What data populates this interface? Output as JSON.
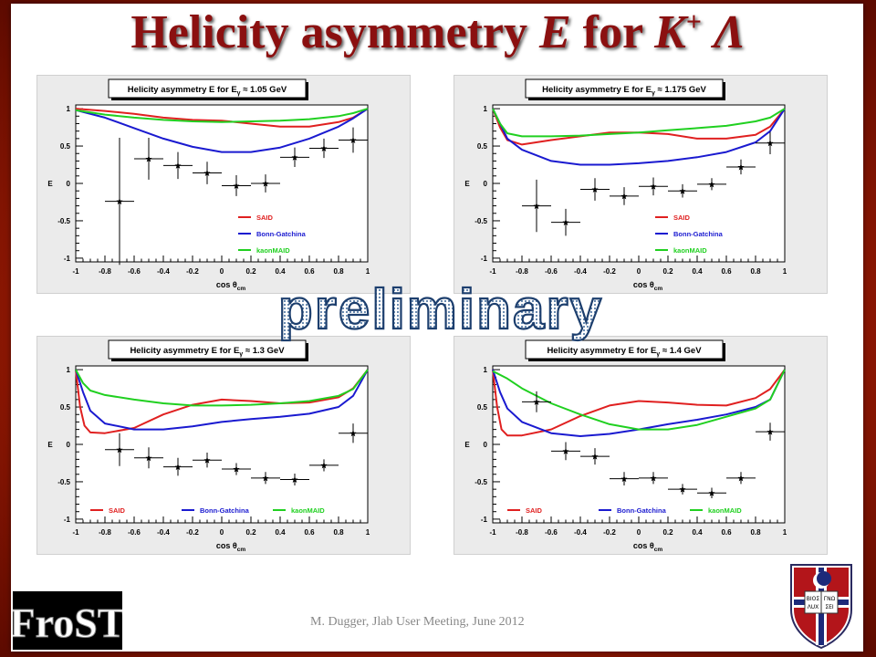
{
  "slide": {
    "title_main": "Helicity asymmetry ",
    "title_var": "E",
    "title_for": " for ",
    "title_K": "K",
    "title_sup": "+",
    "title_lambda": " Λ",
    "watermark": "preliminary",
    "footer": "M. Dugger, Jlab User Meeting, June 2012",
    "logo_text": "FroST",
    "shield_text": [
      "ΒΙΟΣ",
      "ΓΝΩ",
      "ΛUX",
      "ΣΕΙ"
    ]
  },
  "colors": {
    "SAID": "#e02020",
    "Bonn-Gatchina": "#1a1ad0",
    "kaonMAID": "#20d020",
    "title": "#8b1010"
  },
  "chart_data": [
    {
      "type": "line",
      "title_prefix": "Helicity asymmetry E  for E",
      "title_sub": "γ",
      "title_suffix": " ≈ 1.05 GeV",
      "xlabel": "cos θ",
      "xlabel_sub": "cm",
      "ylabel": "E",
      "xlim": [
        -1,
        1
      ],
      "ylim": [
        -1.05,
        1.05
      ],
      "xticks": [
        "-1",
        "-0.8",
        "-0.6",
        "-0.4",
        "-0.2",
        "0",
        "0.2",
        "0.4",
        "0.6",
        "0.8",
        "1"
      ],
      "yticks": [
        "-1",
        "-0.5",
        "0",
        "0.5",
        "1"
      ],
      "legend_position": "bottom-right-vertical",
      "series": [
        {
          "name": "SAID",
          "x": [
            -1,
            -0.8,
            -0.6,
            -0.4,
            -0.2,
            0,
            0.2,
            0.4,
            0.6,
            0.8,
            0.9,
            1
          ],
          "y": [
            1,
            0.97,
            0.93,
            0.88,
            0.85,
            0.84,
            0.8,
            0.76,
            0.76,
            0.82,
            0.88,
            1
          ]
        },
        {
          "name": "Bonn-Gatchina",
          "x": [
            -1,
            -0.8,
            -0.6,
            -0.4,
            -0.2,
            0,
            0.2,
            0.4,
            0.6,
            0.8,
            0.9,
            1
          ],
          "y": [
            0.98,
            0.88,
            0.74,
            0.6,
            0.49,
            0.42,
            0.42,
            0.48,
            0.6,
            0.76,
            0.87,
            1
          ]
        },
        {
          "name": "kaonMAID",
          "x": [
            -1,
            -0.8,
            -0.6,
            -0.4,
            -0.2,
            0,
            0.2,
            0.4,
            0.6,
            0.8,
            0.9,
            1
          ],
          "y": [
            0.98,
            0.92,
            0.88,
            0.85,
            0.83,
            0.82,
            0.83,
            0.84,
            0.86,
            0.9,
            0.94,
            1
          ]
        }
      ],
      "points": {
        "x": [
          -0.7,
          -0.5,
          -0.3,
          -0.1,
          0.1,
          0.3,
          0.5,
          0.7,
          0.9
        ],
        "y": [
          -0.24,
          0.33,
          0.24,
          0.14,
          -0.03,
          0.0,
          0.35,
          0.47,
          0.58
        ],
        "err": [
          0.85,
          0.28,
          0.18,
          0.15,
          0.14,
          0.12,
          0.13,
          0.13,
          0.17
        ]
      }
    },
    {
      "type": "line",
      "title_prefix": "Helicity asymmetry E  for E",
      "title_sub": "γ",
      "title_suffix": " ≈ 1.175 GeV",
      "xlabel": "cos θ",
      "xlabel_sub": "cm",
      "ylabel": "E",
      "xlim": [
        -1,
        1
      ],
      "ylim": [
        -1.05,
        1.05
      ],
      "xticks": [
        "-1",
        "-0.8",
        "-0.6",
        "-0.4",
        "-0.2",
        "0",
        "0.2",
        "0.4",
        "0.6",
        "0.8",
        "1"
      ],
      "yticks": [
        "-1",
        "-0.5",
        "0",
        "0.5",
        "1"
      ],
      "legend_position": "bottom-right-vertical",
      "series": [
        {
          "name": "SAID",
          "x": [
            -1,
            -0.95,
            -0.9,
            -0.8,
            -0.6,
            -0.4,
            -0.2,
            0,
            0.2,
            0.4,
            0.6,
            0.8,
            0.9,
            1
          ],
          "y": [
            1,
            0.75,
            0.58,
            0.52,
            0.58,
            0.63,
            0.68,
            0.68,
            0.66,
            0.6,
            0.6,
            0.65,
            0.76,
            1
          ]
        },
        {
          "name": "Bonn-Gatchina",
          "x": [
            -1,
            -0.95,
            -0.9,
            -0.8,
            -0.6,
            -0.4,
            -0.2,
            0,
            0.2,
            0.4,
            0.6,
            0.8,
            0.9,
            1
          ],
          "y": [
            1,
            0.8,
            0.6,
            0.45,
            0.3,
            0.25,
            0.25,
            0.27,
            0.3,
            0.35,
            0.42,
            0.55,
            0.7,
            1
          ]
        },
        {
          "name": "kaonMAID",
          "x": [
            -1,
            -0.95,
            -0.9,
            -0.8,
            -0.6,
            -0.4,
            -0.2,
            0,
            0.2,
            0.4,
            0.6,
            0.8,
            0.9,
            1
          ],
          "y": [
            1,
            0.8,
            0.67,
            0.63,
            0.63,
            0.64,
            0.66,
            0.68,
            0.71,
            0.74,
            0.77,
            0.83,
            0.88,
            1
          ]
        }
      ],
      "points": {
        "x": [
          -0.7,
          -0.5,
          -0.3,
          -0.1,
          0.1,
          0.3,
          0.5,
          0.7,
          0.9
        ],
        "y": [
          -0.3,
          -0.52,
          -0.08,
          -0.17,
          -0.04,
          -0.1,
          -0.01,
          0.22,
          0.54
        ],
        "err": [
          0.35,
          0.18,
          0.15,
          0.12,
          0.12,
          0.09,
          0.08,
          0.1,
          0.15
        ]
      }
    },
    {
      "type": "line",
      "title_prefix": "Helicity asymmetry E  for E",
      "title_sub": "γ",
      "title_suffix": " ≈ 1.3 GeV",
      "xlabel": "cos θ",
      "xlabel_sub": "cm",
      "ylabel": "E",
      "xlim": [
        -1,
        1
      ],
      "ylim": [
        -1.05,
        1.05
      ],
      "xticks": [
        "-1",
        "-0.8",
        "-0.6",
        "-0.4",
        "-0.2",
        "0",
        "0.2",
        "0.4",
        "0.6",
        "0.8",
        "1"
      ],
      "yticks": [
        "-1",
        "-0.5",
        "0",
        "0.5",
        "1"
      ],
      "legend_position": "bottom-horizontal",
      "series": [
        {
          "name": "SAID",
          "x": [
            -1,
            -0.97,
            -0.94,
            -0.9,
            -0.8,
            -0.6,
            -0.4,
            -0.2,
            0,
            0.2,
            0.4,
            0.6,
            0.8,
            0.9,
            1
          ],
          "y": [
            1,
            0.5,
            0.25,
            0.16,
            0.15,
            0.22,
            0.4,
            0.53,
            0.6,
            0.58,
            0.55,
            0.56,
            0.63,
            0.75,
            1
          ]
        },
        {
          "name": "Bonn-Gatchina",
          "x": [
            -1,
            -0.95,
            -0.9,
            -0.8,
            -0.6,
            -0.4,
            -0.2,
            0,
            0.2,
            0.4,
            0.6,
            0.8,
            0.9,
            1
          ],
          "y": [
            1,
            0.7,
            0.45,
            0.28,
            0.2,
            0.2,
            0.24,
            0.3,
            0.34,
            0.37,
            0.41,
            0.5,
            0.65,
            1
          ]
        },
        {
          "name": "kaonMAID",
          "x": [
            -1,
            -0.95,
            -0.9,
            -0.8,
            -0.6,
            -0.4,
            -0.2,
            0,
            0.2,
            0.4,
            0.6,
            0.8,
            0.9,
            1
          ],
          "y": [
            1,
            0.82,
            0.72,
            0.66,
            0.6,
            0.55,
            0.52,
            0.52,
            0.53,
            0.55,
            0.58,
            0.65,
            0.74,
            1
          ]
        }
      ],
      "points": {
        "x": [
          -0.7,
          -0.5,
          -0.3,
          -0.1,
          0.1,
          0.3,
          0.5,
          0.7,
          0.9
        ],
        "y": [
          -0.07,
          -0.18,
          -0.3,
          -0.21,
          -0.33,
          -0.45,
          -0.47,
          -0.28,
          0.15
        ],
        "err": [
          0.22,
          0.14,
          0.12,
          0.1,
          0.08,
          0.08,
          0.08,
          0.08,
          0.13
        ]
      }
    },
    {
      "type": "line",
      "title_prefix": "Helicity asymmetry E  for E",
      "title_sub": "γ",
      "title_suffix": " ≈ 1.4 GeV",
      "xlabel": "cos θ",
      "xlabel_sub": "cm",
      "ylabel": "E",
      "xlim": [
        -1,
        1
      ],
      "ylim": [
        -1.05,
        1.05
      ],
      "xticks": [
        "-1",
        "-0.8",
        "-0.6",
        "-0.4",
        "-0.2",
        "0",
        "0.2",
        "0.4",
        "0.6",
        "0.8",
        "1"
      ],
      "yticks": [
        "-1",
        "-0.5",
        "0",
        "0.5",
        "1"
      ],
      "legend_position": "bottom-horizontal",
      "series": [
        {
          "name": "SAID",
          "x": [
            -1,
            -0.97,
            -0.94,
            -0.9,
            -0.8,
            -0.6,
            -0.4,
            -0.2,
            0,
            0.2,
            0.4,
            0.6,
            0.8,
            0.9,
            1
          ],
          "y": [
            1,
            0.5,
            0.2,
            0.12,
            0.12,
            0.2,
            0.38,
            0.52,
            0.58,
            0.56,
            0.53,
            0.52,
            0.62,
            0.74,
            1
          ]
        },
        {
          "name": "Bonn-Gatchina",
          "x": [
            -1,
            -0.95,
            -0.9,
            -0.8,
            -0.6,
            -0.4,
            -0.2,
            0,
            0.2,
            0.4,
            0.6,
            0.8,
            0.9,
            1
          ],
          "y": [
            1,
            0.7,
            0.48,
            0.3,
            0.15,
            0.11,
            0.14,
            0.2,
            0.27,
            0.33,
            0.4,
            0.5,
            0.6,
            1
          ]
        },
        {
          "name": "kaonMAID",
          "x": [
            -1,
            -0.9,
            -0.8,
            -0.6,
            -0.4,
            -0.2,
            0,
            0.2,
            0.4,
            0.6,
            0.8,
            0.9,
            1
          ],
          "y": [
            0.98,
            0.88,
            0.75,
            0.55,
            0.4,
            0.27,
            0.2,
            0.2,
            0.26,
            0.37,
            0.48,
            0.6,
            1
          ]
        }
      ],
      "points": {
        "x": [
          -0.7,
          -0.5,
          -0.3,
          -0.1,
          0.1,
          0.3,
          0.5,
          0.7,
          0.9
        ],
        "y": [
          0.57,
          -0.09,
          -0.16,
          -0.46,
          -0.45,
          -0.6,
          -0.65,
          -0.45,
          0.17
        ],
        "err": [
          0.14,
          0.12,
          0.11,
          0.09,
          0.08,
          0.07,
          0.07,
          0.08,
          0.12
        ]
      }
    }
  ]
}
